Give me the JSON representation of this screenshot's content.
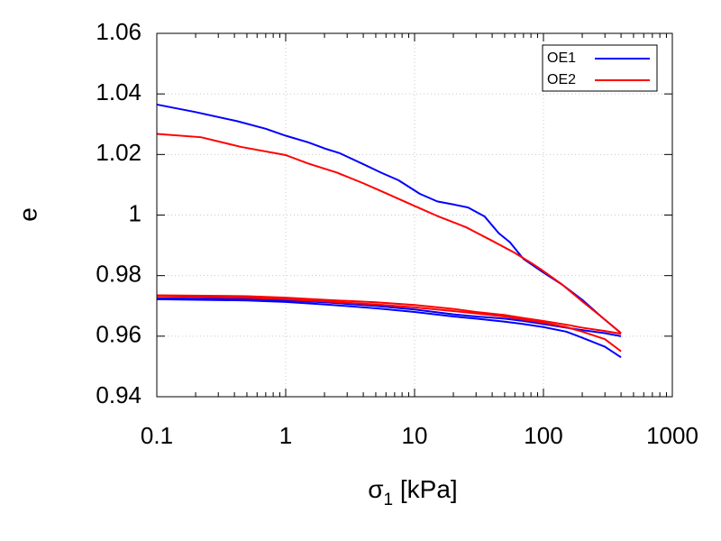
{
  "chart_data": {
    "type": "line",
    "title": "",
    "xlabel": "σ1 [kPa]",
    "xlabel_main": "σ",
    "xlabel_sub": "1",
    "xlabel_unit": " [kPa]",
    "ylabel": "e",
    "xscale": "log",
    "xlim": [
      0.1,
      1000
    ],
    "ylim": [
      0.94,
      1.06
    ],
    "xticks": [
      0.1,
      1,
      10,
      100,
      1000
    ],
    "xtick_labels": [
      "0.1",
      "1",
      "10",
      "100",
      "1000"
    ],
    "yticks": [
      0.94,
      0.96,
      0.98,
      1.0,
      1.02,
      1.04,
      1.06
    ],
    "ytick_labels": [
      "0.94",
      "0.96",
      "0.98",
      "1",
      "1.02",
      "1.04",
      "1.06"
    ],
    "grid": true,
    "legend_position": "top-right",
    "series": [
      {
        "name": "OE1",
        "color": "#0000ff",
        "segments": [
          {
            "x": [
              0.1,
              0.2,
              0.42,
              0.7,
              1.0,
              1.5,
              2.0,
              2.6,
              4.0,
              5.5,
              7.5,
              11.0,
              15.0,
              20.0,
              26.0,
              35.0,
              45.0,
              55.0,
              70.0,
              100.0,
              140.0,
              200.0,
              280.0,
              400.0
            ],
            "y": [
              1.0365,
              1.034,
              1.031,
              1.0285,
              1.0262,
              1.024,
              1.022,
              1.0205,
              1.0168,
              1.014,
              1.0115,
              1.007,
              1.0045,
              1.0035,
              1.0025,
              0.9995,
              0.994,
              0.991,
              0.9855,
              0.981,
              0.977,
              0.972,
              0.9665,
              0.961
            ]
          },
          {
            "x": [
              400.0,
              300.0,
              200.0,
              150.0,
              100.0,
              70.0,
              50.0,
              30.0,
              20.0,
              10.0,
              5.0,
              2.0,
              1.0,
              0.5,
              0.1
            ],
            "y": [
              0.953,
              0.9565,
              0.9595,
              0.9615,
              0.963,
              0.964,
              0.9648,
              0.9658,
              0.9665,
              0.968,
              0.9692,
              0.9705,
              0.9713,
              0.9718,
              0.9722
            ]
          },
          {
            "x": [
              0.1,
              0.5,
              1.0,
              2.0,
              5.0,
              10.0,
              20.0,
              30.0,
              50.0,
              70.0,
              100.0,
              150.0,
              200.0,
              300.0,
              400.0
            ],
            "y": [
              0.9725,
              0.9722,
              0.9718,
              0.9712,
              0.97,
              0.9688,
              0.9672,
              0.9665,
              0.9658,
              0.965,
              0.964,
              0.9628,
              0.962,
              0.961,
              0.96
            ]
          }
        ]
      },
      {
        "name": "OE2",
        "color": "#ff0000",
        "segments": [
          {
            "x": [
              0.1,
              0.22,
              0.45,
              1.0,
              1.5,
              2.5,
              4.0,
              6.0,
              10.0,
              15.0,
              25.0,
              40.0,
              60.0,
              85.0,
              100.0,
              140.0,
              200.0,
              280.0,
              400.0
            ],
            "y": [
              1.0268,
              1.0257,
              1.0225,
              1.0198,
              1.017,
              1.014,
              1.0105,
              1.0072,
              1.003,
              0.9997,
              0.996,
              0.9915,
              0.9875,
              0.9835,
              0.9815,
              0.977,
              0.9715,
              0.9665,
              0.961
            ]
          },
          {
            "x": [
              400.0,
              300.0,
              200.0,
              150.0,
              100.0,
              70.0,
              50.0,
              30.0,
              20.0,
              10.0,
              5.0,
              2.0,
              1.0,
              0.5,
              0.1
            ],
            "y": [
              0.955,
              0.959,
              0.9615,
              0.963,
              0.9645,
              0.9655,
              0.9665,
              0.9675,
              0.9683,
              0.9695,
              0.9705,
              0.9715,
              0.9722,
              0.9727,
              0.9732
            ]
          },
          {
            "x": [
              0.1,
              0.5,
              1.0,
              2.0,
              5.0,
              10.0,
              20.0,
              30.0,
              50.0,
              70.0,
              100.0,
              150.0,
              200.0,
              300.0,
              400.0
            ],
            "y": [
              0.9735,
              0.9732,
              0.9727,
              0.972,
              0.9712,
              0.9703,
              0.969,
              0.968,
              0.967,
              0.966,
              0.965,
              0.9638,
              0.9628,
              0.9617,
              0.9608
            ]
          }
        ]
      }
    ]
  }
}
